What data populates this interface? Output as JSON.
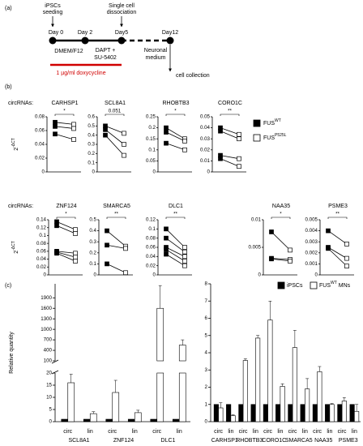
{
  "panel_a": {
    "label": "(a)",
    "days": [
      "Day 0",
      "Day 2",
      "Day5",
      "Day12"
    ],
    "top_notes": [
      [
        "iPSCs",
        "seeding"
      ],
      [
        "Single cell",
        "dissociation"
      ]
    ],
    "media": [
      [
        "DMEM/F12"
      ],
      [
        "DAPT +",
        "SU-5402"
      ],
      [
        "Neuronal",
        "medium"
      ]
    ],
    "doxycycline": "1 µg/ml doxycycline",
    "end": "cell collection"
  },
  "panel_b": {
    "label": "(b)",
    "row_label": "circRNAs:",
    "ylabel": {
      "text": "2",
      "superscript": "-ΔCT"
    },
    "legend": [
      {
        "text": "FUS",
        "superscript": "WT",
        "color": "#000000"
      },
      {
        "text": "FUS",
        "superscript": "P525L",
        "color": "#ffffff"
      }
    ],
    "rows": [
      [
        {
          "title": "CARHSP1",
          "significance": "*",
          "ylim": [
            0,
            0.08
          ],
          "yticks": [
            0,
            0.02,
            0.04,
            0.06,
            0.08
          ],
          "pairs": [
            [
              0.072,
              0.069
            ],
            [
              0.066,
              0.063
            ],
            [
              0.055,
              0.047
            ]
          ]
        },
        {
          "title": "SCL8A1",
          "significance": "0.051",
          "ylim": [
            0,
            0.6
          ],
          "yticks": [
            0,
            0.1,
            0.2,
            0.3,
            0.4,
            0.5,
            0.6
          ],
          "pairs": [
            [
              0.5,
              0.42
            ],
            [
              0.46,
              0.3
            ],
            [
              0.4,
              0.18
            ]
          ]
        },
        {
          "title": "RHOBTB3",
          "significance": "*",
          "ylim": [
            0,
            0.25
          ],
          "yticks": [
            0,
            0.05,
            0.1,
            0.15,
            0.2,
            0.25
          ],
          "pairs": [
            [
              0.2,
              0.15
            ],
            [
              0.18,
              0.14
            ],
            [
              0.13,
              0.1
            ]
          ]
        },
        {
          "title": "CORO1C",
          "significance": "**",
          "ylim": [
            0,
            0.05
          ],
          "yticks": [
            0,
            0.01,
            0.02,
            0.03,
            0.04,
            0.05
          ],
          "pairs": [
            [
              0.04,
              0.034
            ],
            [
              0.037,
              0.03
            ],
            [
              0.015,
              0.012
            ],
            [
              0.012,
              0.005
            ]
          ]
        }
      ],
      [
        {
          "title": "ZNF124",
          "significance": "*",
          "ylim": [
            0,
            0.14
          ],
          "yticks": [
            0,
            0.02,
            0.04,
            0.06,
            0.08,
            0.1,
            0.12,
            0.14
          ],
          "pairs": [
            [
              0.135,
              0.115
            ],
            [
              0.125,
              0.105
            ],
            [
              0.06,
              0.055
            ],
            [
              0.058,
              0.045
            ],
            [
              0.055,
              0.035
            ]
          ]
        },
        {
          "title": "SMARCA5",
          "significance": "**",
          "ylim": [
            0,
            0.5
          ],
          "yticks": [
            0,
            0.1,
            0.2,
            0.3,
            0.4,
            0.5
          ],
          "pairs": [
            [
              0.4,
              0.26
            ],
            [
              0.27,
              0.24
            ],
            [
              0.1,
              0.02
            ]
          ]
        },
        {
          "title": "DLC1",
          "significance": "**",
          "ylim": [
            0,
            0.12
          ],
          "yticks": [
            0,
            0.02,
            0.04,
            0.06,
            0.08,
            0.1,
            0.12
          ],
          "pairs": [
            [
              0.1,
              0.06
            ],
            [
              0.08,
              0.05
            ],
            [
              0.06,
              0.04
            ],
            [
              0.055,
              0.03
            ],
            [
              0.045,
              0.02
            ]
          ]
        },
        {
          "title": "NAA35",
          "significance": "*",
          "ylim": [
            0,
            0.01
          ],
          "yticks": [
            0,
            0.005,
            0.01
          ],
          "pairs": [
            [
              0.0078,
              0.0045
            ],
            [
              0.003,
              0.0028
            ],
            [
              0.0029,
              0.0025
            ]
          ]
        },
        {
          "title": "PSME3",
          "significance": "**",
          "ylim": [
            0,
            0.005
          ],
          "yticks": [
            0,
            0.001,
            0.002,
            0.003,
            0.004,
            0.005
          ],
          "pairs": [
            [
              0.004,
              0.0028
            ],
            [
              0.0025,
              0.0015
            ],
            [
              0.0024,
              0.0008
            ]
          ]
        }
      ]
    ]
  },
  "chart_data": {
    "type": "bar",
    "label": "(c)",
    "ylabel": "Relative quantity",
    "subcategories": [
      "circ",
      "lin"
    ],
    "legend": [
      {
        "text": "iPSCs",
        "color": "#000000"
      },
      {
        "text": "FUS",
        "superscript": "WT",
        "after": "MNs",
        "color": "#ffffff"
      }
    ],
    "left": {
      "categories": [
        "SCL8A1",
        "ZNF124",
        "DLC1"
      ],
      "series": [
        {
          "color": "#000000",
          "values": [
            [
              1,
              1
            ],
            [
              1,
              1
            ],
            [
              1,
              1
            ]
          ]
        },
        {
          "color": "#ffffff",
          "values": [
            [
              16,
              3.3
            ],
            [
              12,
              3.7
            ],
            [
              1600,
              550
            ]
          ],
          "errors": [
            [
              3.5,
              0.8
            ],
            [
              5,
              1
            ],
            [
              650,
              150
            ]
          ]
        }
      ],
      "lower": {
        "ylim": [
          0,
          20
        ],
        "yticks": [
          0,
          5,
          10,
          15,
          20
        ]
      },
      "upper": {
        "ylim": [
          100,
          2300
        ],
        "yticks": [
          100,
          400,
          700,
          1000,
          1300,
          1600,
          1900
        ]
      }
    },
    "right": {
      "categories": [
        "CARHSP1",
        "RHOBTB3",
        "CORO1C",
        "SMARCA5",
        "NAA35",
        "PSME3"
      ],
      "series": [
        {
          "color": "#000000",
          "values": [
            [
              1,
              1
            ],
            [
              1,
              1
            ],
            [
              1,
              1
            ],
            [
              1,
              1
            ],
            [
              1,
              1
            ],
            [
              1,
              1
            ]
          ]
        },
        {
          "color": "#ffffff",
          "values": [
            [
              0.8,
              0.35
            ],
            [
              3.55,
              4.85
            ],
            [
              5.9,
              2.05
            ],
            [
              4.3,
              1.9
            ],
            [
              2.9,
              1.0
            ],
            [
              1.2,
              0.6
            ]
          ],
          "errors": [
            [
              0.3,
              0.05
            ],
            [
              0.1,
              0.15
            ],
            [
              1.1,
              0.15
            ],
            [
              1.0,
              0.6
            ],
            [
              0.3,
              0.05
            ],
            [
              0.2,
              0.4
            ]
          ]
        }
      ],
      "ylim": [
        0,
        8
      ],
      "yticks": [
        0,
        1,
        2,
        3,
        4,
        5,
        6,
        7,
        8
      ]
    }
  }
}
